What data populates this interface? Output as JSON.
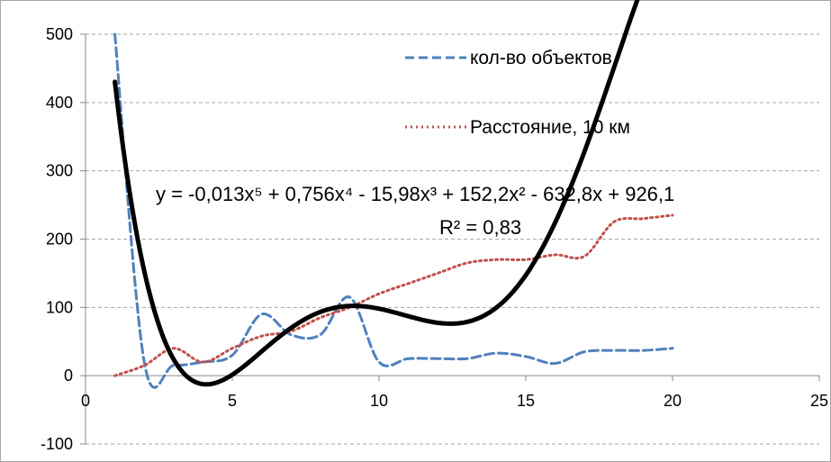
{
  "chart_data": {
    "type": "scatter",
    "xlim": [
      0,
      25
    ],
    "ylim": [
      -100,
      500
    ],
    "x_ticks": [
      0,
      5,
      10,
      15,
      20,
      25
    ],
    "y_ticks": [
      -100,
      0,
      100,
      200,
      300,
      400,
      500
    ],
    "grid": "horizontal dashed",
    "legend_position": "top-right",
    "series": [
      {
        "name": "кол-во объектов",
        "color": "#4f81bd",
        "style": "dashed",
        "x": [
          1,
          2,
          3,
          4,
          5,
          6,
          7,
          8,
          9,
          10,
          11,
          12,
          13,
          14,
          15,
          16,
          17,
          18,
          19,
          20
        ],
        "y": [
          500,
          20,
          15,
          20,
          30,
          90,
          60,
          60,
          115,
          20,
          25,
          25,
          25,
          33,
          28,
          18,
          35,
          37,
          37,
          40
        ]
      },
      {
        "name": "Расстояние, 10 км",
        "color": "#c0504d",
        "style": "dotted",
        "x": [
          1,
          2,
          3,
          4,
          5,
          6,
          7,
          8,
          9,
          10,
          11,
          12,
          13,
          14,
          15,
          16,
          17,
          18,
          19,
          20
        ],
        "y": [
          0,
          15,
          40,
          20,
          40,
          58,
          65,
          85,
          100,
          120,
          135,
          150,
          165,
          170,
          170,
          177,
          175,
          225,
          230,
          235
        ]
      }
    ],
    "trendline": {
      "color": "#000000",
      "x_range": [
        1,
        20
      ],
      "coefficients": [
        -0.013,
        0.756,
        -15.98,
        152.2,
        -632.8,
        926.1
      ],
      "equation": "y = -0,013x⁵ + 0,756x⁴ - 15,98x³ + 152,2x² - 632,8x + 926,1",
      "r_squared": "R² = 0,83"
    }
  }
}
